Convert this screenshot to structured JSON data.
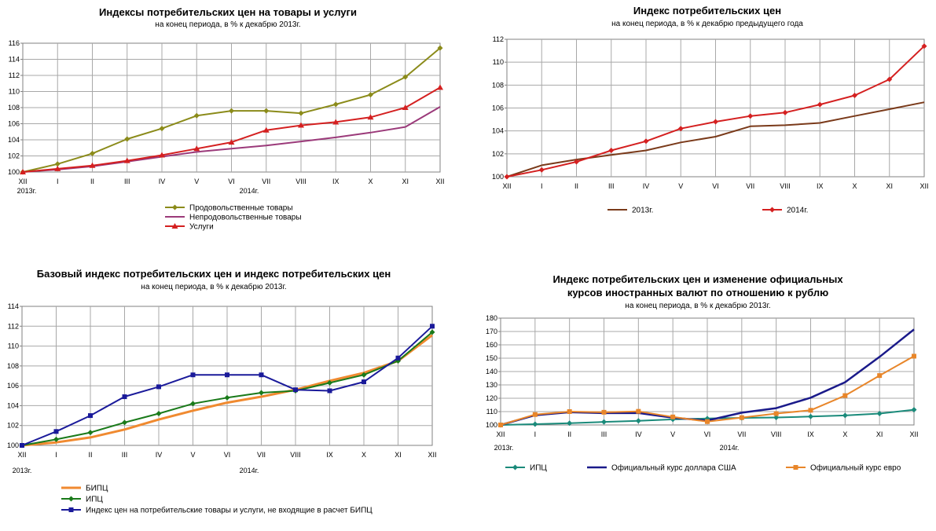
{
  "chart_data": [
    {
      "type": "line",
      "title": "Индексы потребительских цен на товары и  услуги",
      "subtitle": "на конец периода, в % к декабрю 2013г.",
      "categories": [
        "XII",
        "I",
        "II",
        "III",
        "IV",
        "V",
        "VI",
        "VII",
        "VIII",
        "IX",
        "X",
        "XI",
        "XII"
      ],
      "year_labels": [
        "2013г.",
        "2014г."
      ],
      "ylim": [
        100,
        116
      ],
      "yticks": [
        100,
        102,
        104,
        106,
        108,
        110,
        112,
        114,
        116
      ],
      "grid": true,
      "legend_position": "bottom",
      "series": [
        {
          "name": "Продовольственные товары",
          "color": "#8b8b1a",
          "marker": "diamond",
          "values": [
            100,
            101.0,
            102.3,
            104.1,
            105.4,
            107.0,
            107.6,
            107.6,
            107.3,
            108.4,
            109.6,
            111.8,
            115.4
          ]
        },
        {
          "name": "Непродовольственные товары",
          "color": "#9b3a7a",
          "marker": "none",
          "values": [
            100,
            100.3,
            100.7,
            101.3,
            101.9,
            102.5,
            102.9,
            103.3,
            103.8,
            104.3,
            104.9,
            105.6,
            108.1
          ]
        },
        {
          "name": "Услуги",
          "color": "#d42020",
          "marker": "triangle",
          "values": [
            100,
            100.4,
            100.8,
            101.4,
            102.1,
            102.9,
            103.7,
            105.2,
            105.8,
            106.2,
            106.8,
            108.0,
            110.5
          ]
        }
      ]
    },
    {
      "type": "line",
      "title": "Индекс потребительских цен",
      "subtitle": "на конец периода, в % к декабрю предыдущего года",
      "categories": [
        "XII",
        "I",
        "II",
        "III",
        "IV",
        "V",
        "VI",
        "VII",
        "VIII",
        "IX",
        "X",
        "XI",
        "XII"
      ],
      "year_labels": [],
      "ylim": [
        100,
        112
      ],
      "yticks": [
        100,
        102,
        104,
        106,
        108,
        110,
        112
      ],
      "grid": true,
      "legend_position": "bottom",
      "series": [
        {
          "name": "2013г.",
          "color": "#7a3a1a",
          "marker": "none",
          "values": [
            100,
            101.0,
            101.5,
            101.9,
            102.3,
            103.0,
            103.5,
            104.4,
            104.5,
            104.7,
            105.3,
            105.9,
            106.5
          ]
        },
        {
          "name": "2014г.",
          "color": "#d42020",
          "marker": "diamond",
          "values": [
            100,
            100.6,
            101.3,
            102.3,
            103.1,
            104.2,
            104.8,
            105.3,
            105.6,
            106.3,
            107.1,
            108.5,
            111.4
          ]
        }
      ]
    },
    {
      "type": "line",
      "title": "Базовый индекс потребительских цен и индекс потребительских цен",
      "subtitle": "на конец периода, в % к декабрю 2013г.",
      "categories": [
        "XII",
        "I",
        "II",
        "III",
        "IV",
        "V",
        "VI",
        "VII",
        "VIII",
        "IX",
        "X",
        "XI",
        "XII"
      ],
      "year_labels": [
        "2013г.",
        "2014г."
      ],
      "ylim": [
        100,
        114
      ],
      "yticks": [
        100,
        102,
        104,
        106,
        108,
        110,
        112,
        114
      ],
      "grid": true,
      "legend_position": "bottom",
      "series": [
        {
          "name": "БИПЦ",
          "color": "#f08a30",
          "marker": "none",
          "width": 3,
          "values": [
            100,
            100.3,
            100.8,
            101.6,
            102.6,
            103.5,
            104.3,
            104.9,
            105.6,
            106.5,
            107.3,
            108.5,
            111.1
          ]
        },
        {
          "name": "ИПЦ",
          "color": "#1a7a1a",
          "marker": "diamond",
          "values": [
            100,
            100.6,
            101.3,
            102.3,
            103.2,
            104.2,
            104.8,
            105.3,
            105.5,
            106.3,
            107.1,
            108.5,
            111.4
          ]
        },
        {
          "name": "Индекс цен на потребительские товары и услуги, не входящие в расчет БИПЦ",
          "color": "#1a1a9a",
          "marker": "square",
          "values": [
            100,
            101.4,
            103.0,
            104.9,
            105.9,
            107.1,
            107.1,
            107.1,
            105.6,
            105.5,
            106.4,
            108.8,
            112.0
          ]
        }
      ]
    },
    {
      "type": "line",
      "title": "Индекс потребительских цен и изменение официальных курсов иностранных валют по отношению к рублю",
      "title_lines": [
        "Индекс потребительских цен и изменение официальных",
        "курсов иностранных валют по отношению к рублю"
      ],
      "subtitle": "на конец периода, в % к декабрю 2013г.",
      "categories": [
        "XII",
        "I",
        "II",
        "III",
        "IV",
        "V",
        "VI",
        "VII",
        "VIII",
        "IX",
        "X",
        "XI",
        "XII"
      ],
      "year_labels": [
        "2013г.",
        "2014г."
      ],
      "ylim": [
        100,
        180
      ],
      "yticks": [
        100,
        110,
        120,
        130,
        140,
        150,
        160,
        170,
        180
      ],
      "grid": true,
      "legend_position": "bottom",
      "series": [
        {
          "name": "ИПЦ",
          "color": "#1a8a7a",
          "marker": "diamond",
          "values": [
            100,
            100.6,
            101.3,
            102.3,
            103.1,
            104.2,
            104.8,
            105.3,
            105.6,
            106.3,
            107.1,
            108.5,
            111.4
          ]
        },
        {
          "name": "Официальный курс доллара США",
          "color": "#1a1a8a",
          "marker": "none",
          "width": 2.5,
          "values": [
            100,
            107.3,
            109.6,
            108.9,
            109.0,
            105.4,
            103.3,
            109.2,
            112.6,
            120.4,
            132.0,
            151.0,
            171.5
          ]
        },
        {
          "name": "Официальный курс евро",
          "color": "#e8862a",
          "marker": "square",
          "values": [
            100,
            107.8,
            110.0,
            109.5,
            110.2,
            106.0,
            102.5,
            105.5,
            108.5,
            111.0,
            122.0,
            137.0,
            151.5
          ]
        }
      ]
    }
  ]
}
